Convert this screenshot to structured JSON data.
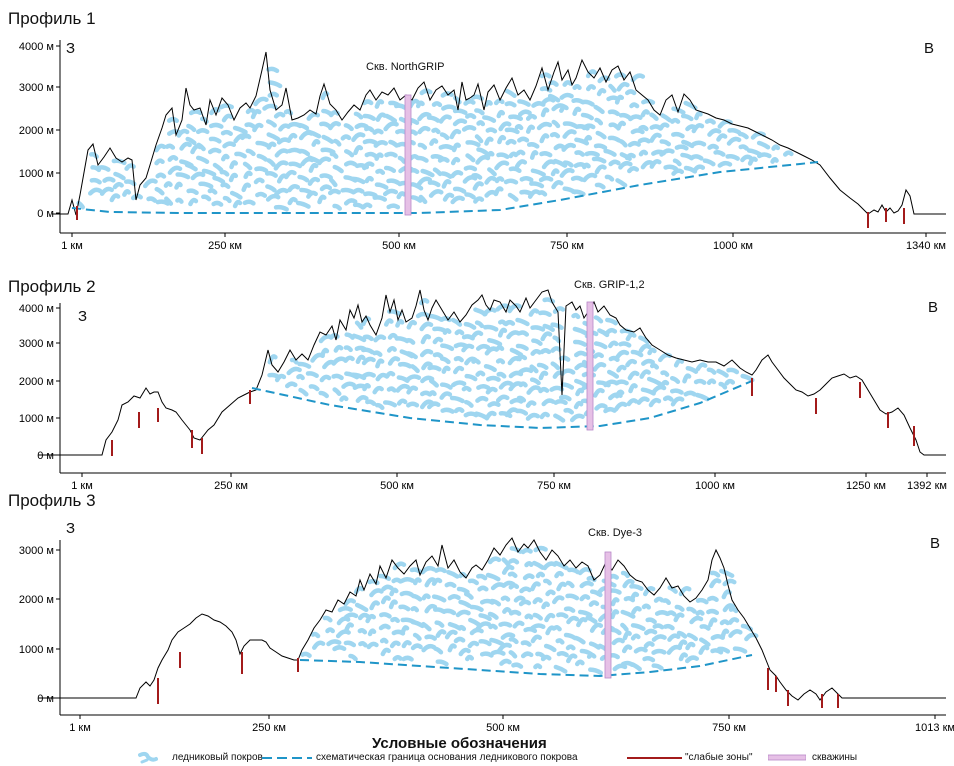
{
  "colors": {
    "ice": "#9fd6f0",
    "base": "#1f95c8",
    "weak": "#a31b1b",
    "well": "#d9a9d9",
    "outline": "#000000"
  },
  "profiles": [
    {
      "title": "Профиль 1",
      "west": "З",
      "east": "В",
      "well_label": "Скв. NorthGRIP",
      "y_ticks": [
        "4000 м",
        "3000 м",
        "2000 м",
        "1000 м",
        "0 м"
      ],
      "x_ticks": [
        "1 км",
        "250 км",
        "500 км",
        "750 км",
        "1000 км",
        "1340 км"
      ]
    },
    {
      "title": "Профиль 2",
      "west": "З",
      "east": "В",
      "well_label": "Скв. GRIP-1,2",
      "y_ticks": [
        "4000 м",
        "3000 м",
        "2000 м",
        "1000 м",
        "0 м"
      ],
      "x_ticks": [
        "1 км",
        "250 км",
        "500 км",
        "750 км",
        "1000 км",
        "1250 км",
        "1392 км"
      ]
    },
    {
      "title": "Профиль 3",
      "west": "З",
      "east": "В",
      "well_label": "Скв. Dye-3",
      "y_ticks": [
        "3000 м",
        "2000 м",
        "1000 м",
        "0 м"
      ],
      "x_ticks": [
        "1 км",
        "250 км",
        "500 км",
        "750 км",
        "1013 км"
      ]
    }
  ],
  "legend": {
    "title": "Условные обозначения",
    "ice": "ледниковый покров",
    "base": "схематическая граница основания ледникового покрова",
    "weak": "\"слабые зоны\"",
    "well": "скважины"
  }
}
